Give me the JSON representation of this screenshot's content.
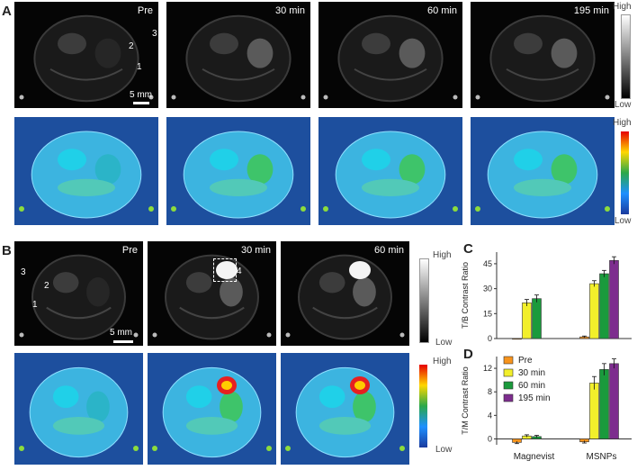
{
  "panels": {
    "A": "A",
    "B": "B",
    "C": "C",
    "D": "D"
  },
  "panelA": {
    "times": [
      "Pre",
      "30 min",
      "60 min",
      "195 min"
    ],
    "roi_labels": [
      "1",
      "2",
      "3"
    ],
    "scale": "5 mm",
    "gray_bar": {
      "high": "High",
      "low": "Low"
    },
    "color_bar": {
      "high": "High",
      "low": "Low"
    }
  },
  "panelB": {
    "times": [
      "Pre",
      "30 min",
      "60 min"
    ],
    "roi_labels": [
      "1",
      "2",
      "3",
      "4"
    ],
    "scale": "5 mm",
    "gray_bar": {
      "high": "High",
      "low": "Low"
    },
    "color_bar": {
      "high": "High",
      "low": "Low"
    }
  },
  "chart_data": [
    {
      "type": "bar",
      "panel": "C",
      "ylabel": "T/B Contrast Ratio",
      "categories": [
        "Magnevist",
        "MSNPs"
      ],
      "yticks": [
        0,
        15,
        30,
        45
      ],
      "ylim": [
        0,
        52
      ],
      "series": [
        {
          "name": "Pre",
          "color": "#f7941d",
          "values": [
            0,
            1
          ],
          "errors": [
            0,
            0.5
          ]
        },
        {
          "name": "30 min",
          "color": "#f2ef2b",
          "values": [
            21.5,
            33
          ],
          "errors": [
            2,
            1.8
          ]
        },
        {
          "name": "60 min",
          "color": "#1a9a3c",
          "values": [
            24,
            39
          ],
          "errors": [
            2.2,
            2
          ]
        },
        {
          "name": "195 min",
          "color": "#7d2d8e",
          "values": [
            null,
            47
          ],
          "errors": [
            null,
            2.2
          ]
        }
      ]
    },
    {
      "type": "bar",
      "panel": "D",
      "ylabel": "T/M Contrast Ratio",
      "categories": [
        "Magnevist",
        "MSNPs"
      ],
      "yticks": [
        0,
        4,
        8,
        12
      ],
      "ylim": [
        -1,
        14
      ],
      "legend": "top-left",
      "series": [
        {
          "name": "Pre",
          "color": "#f7941d",
          "values": [
            -0.6,
            -0.5
          ],
          "errors": [
            0.2,
            0.2
          ]
        },
        {
          "name": "30 min",
          "color": "#f2ef2b",
          "values": [
            0.5,
            9.5
          ],
          "errors": [
            0.2,
            1.1
          ]
        },
        {
          "name": "60 min",
          "color": "#1a9a3c",
          "values": [
            0.4,
            11.8
          ],
          "errors": [
            0.2,
            1
          ]
        },
        {
          "name": "195 min",
          "color": "#7d2d8e",
          "values": [
            null,
            12.8
          ],
          "errors": [
            null,
            0.8
          ]
        }
      ]
    }
  ]
}
